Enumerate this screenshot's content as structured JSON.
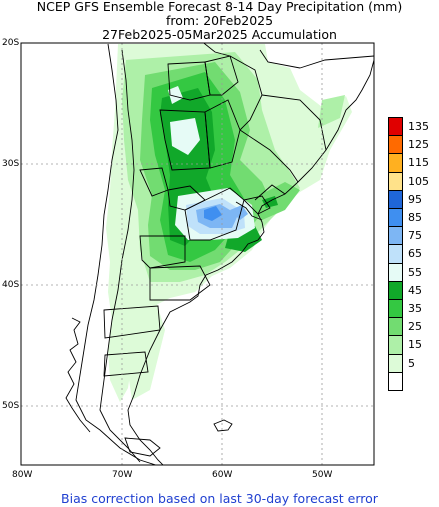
{
  "titles": {
    "line1": "NCEP GFS Ensemble Forecast 8-14 Day Precipitation (mm)",
    "line2": "from: 20Feb2025",
    "line3": "27Feb2025-05Mar2025 Accumulation"
  },
  "footer": "Bias correction based on last 30-day forecast error",
  "lat_labels": [
    "20S",
    "30S",
    "40S",
    "50S"
  ],
  "lon_labels": [
    "80W",
    "70W",
    "60W",
    "50W"
  ],
  "legend": {
    "levels": [
      {
        "label": "135",
        "color": "#e00000"
      },
      {
        "label": "125",
        "color": "#ff6a00"
      },
      {
        "label": "115",
        "color": "#ffb020"
      },
      {
        "label": "105",
        "color": "#ffe28a"
      },
      {
        "label": "95",
        "color": "#1f66d8"
      },
      {
        "label": "85",
        "color": "#3f8ff0"
      },
      {
        "label": "75",
        "color": "#7db6f4"
      },
      {
        "label": "65",
        "color": "#bfe1fa"
      },
      {
        "label": "55",
        "color": "#e6fbf6"
      },
      {
        "label": "45",
        "color": "#11a82a"
      },
      {
        "label": "35",
        "color": "#34c842"
      },
      {
        "label": "25",
        "color": "#72dc71"
      },
      {
        "label": "15",
        "color": "#aef0a8"
      },
      {
        "label": "5",
        "color": "#ddfbd8"
      },
      {
        "label": "",
        "color": "#ffffff"
      }
    ]
  }
}
